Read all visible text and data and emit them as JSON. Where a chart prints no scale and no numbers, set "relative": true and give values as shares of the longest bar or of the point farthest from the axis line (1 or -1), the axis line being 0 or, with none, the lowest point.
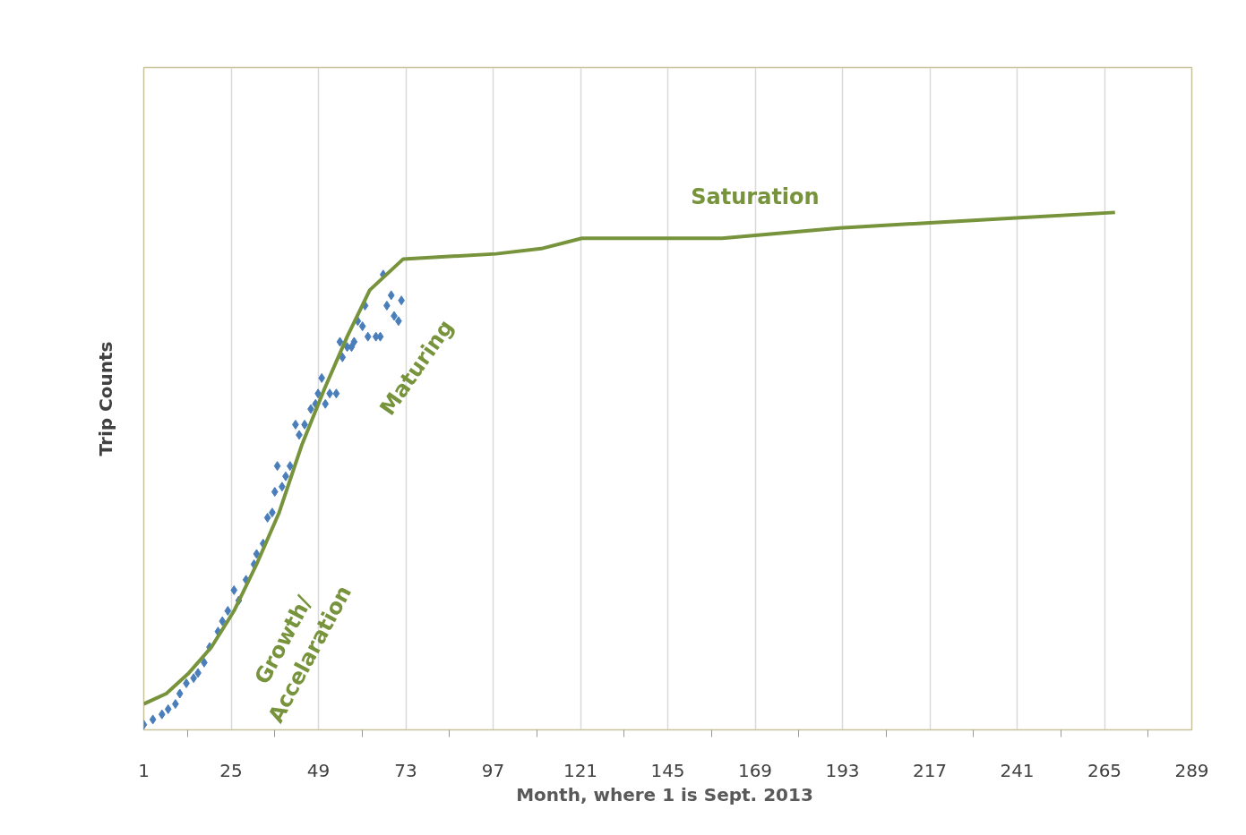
{
  "chart_data": {
    "type": "scatter",
    "relative": true,
    "xlabel": "Month,  where 1 is Sept. 2013",
    "ylabel": "Trip Counts",
    "xlim": [
      1,
      289
    ],
    "xticks": [
      1,
      25,
      49,
      73,
      97,
      121,
      145,
      169,
      193,
      217,
      241,
      265,
      289
    ],
    "grid": "x",
    "series": [
      {
        "marker": "diamond",
        "color": "#4a7ebb",
        "x": [
          1,
          3.5,
          6,
          7.7,
          9.7,
          10.9,
          12.7,
          14.7,
          15.9,
          17.6,
          19.1,
          21.4,
          22.6,
          24.1,
          25.8,
          27.1,
          29.1,
          31.3,
          32,
          33.8,
          35,
          36.3,
          37,
          37.7,
          39,
          40,
          41.2,
          42.7,
          43.7,
          45.2,
          46.9,
          48.2,
          48.9,
          49.9,
          50.9,
          52.1,
          53.9,
          54.9,
          55.6,
          56.9,
          58.1,
          58.8,
          59.8,
          61.1,
          61.8,
          62.6,
          64.8,
          66,
          66.8,
          67.8,
          69,
          69.8,
          71,
          71.8
        ],
        "values": [
          0.01,
          0.02,
          0.03,
          0.04,
          0.05,
          0.07,
          0.09,
          0.1,
          0.11,
          0.13,
          0.16,
          0.19,
          0.21,
          0.23,
          0.27,
          0.25,
          0.29,
          0.32,
          0.34,
          0.36,
          0.41,
          0.42,
          0.46,
          0.51,
          0.47,
          0.49,
          0.51,
          0.59,
          0.57,
          0.59,
          0.62,
          0.63,
          0.65,
          0.68,
          0.63,
          0.65,
          0.65,
          0.75,
          0.72,
          0.74,
          0.74,
          0.75,
          0.79,
          0.78,
          0.82,
          0.76,
          0.76,
          0.76,
          0.88,
          0.82,
          0.84,
          0.8,
          0.79,
          0.83
        ]
      },
      {
        "type": "line",
        "color": "#77933c",
        "line_style": "solid",
        "x": [
          1,
          7.2,
          13.4,
          19.6,
          25.8,
          32,
          38.2,
          44.4,
          50.7,
          56.9,
          63.1,
          72.3,
          97.8,
          110.2,
          121.4,
          130.1,
          149.9,
          159.9,
          192.2,
          217,
          241.8,
          267.9
        ],
        "values": [
          0.05,
          0.07,
          0.11,
          0.16,
          0.23,
          0.32,
          0.42,
          0.55,
          0.66,
          0.76,
          0.85,
          0.91,
          0.92,
          0.93,
          0.95,
          0.95,
          0.95,
          0.95,
          0.97,
          0.98,
          0.99,
          1.0
        ]
      }
    ],
    "annotations": [
      "Saturation",
      "Maturing",
      "Growth/\nAccelaration"
    ]
  }
}
